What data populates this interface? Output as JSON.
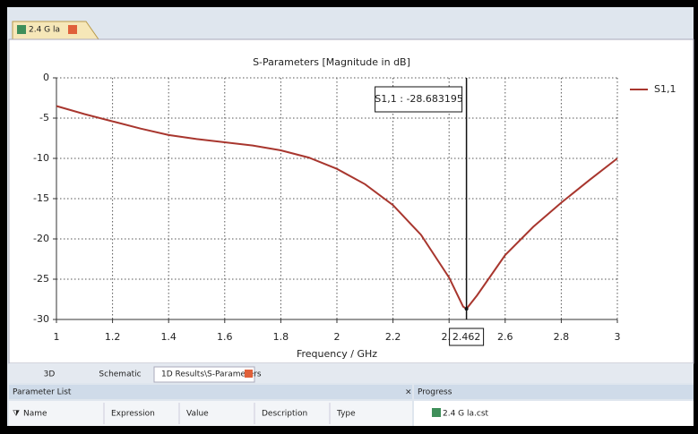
{
  "window": {
    "tab": "2.4 G la"
  },
  "chart_data": {
    "type": "line",
    "title": "S-Parameters [Magnitude in dB]",
    "x_label": "Frequency / GHz",
    "x": [
      1.0,
      1.1,
      1.2,
      1.3,
      1.4,
      1.5,
      1.6,
      1.7,
      1.8,
      1.9,
      2.0,
      2.1,
      2.2,
      2.3,
      2.4,
      2.45,
      2.462,
      2.5,
      2.6,
      2.7,
      2.8,
      2.9,
      3.0
    ],
    "series": [
      {
        "name": "S1,1",
        "color": "#a8362e",
        "values": [
          -3.5,
          -4.5,
          -5.4,
          -6.3,
          -7.1,
          -7.6,
          -8.0,
          -8.4,
          -9.0,
          -9.9,
          -11.3,
          -13.2,
          -15.8,
          -19.5,
          -24.8,
          -28.4,
          -28.683195,
          -27.0,
          -22.0,
          -18.5,
          -15.5,
          -12.7,
          -10.0
        ]
      }
    ],
    "xlim": [
      1,
      3
    ],
    "xticks": [
      1,
      1.2,
      1.4,
      1.6,
      1.8,
      2,
      2.2,
      2.4,
      2.6,
      2.8,
      3
    ],
    "ylim": [
      -30,
      0
    ],
    "yticks": [
      0,
      -5,
      -10,
      -15,
      -20,
      -25,
      -30
    ],
    "grid": true,
    "legend": "right",
    "marker": {
      "x": 2.462,
      "value": -28.683195,
      "label": "S1,1 : -28.683195"
    }
  },
  "bottom_tabs": [
    "3D",
    "Schematic",
    "1D Results\\S-Parameters"
  ],
  "parameter_list": {
    "title": "Parameter List",
    "columns": [
      "Name",
      "Expression",
      "Value",
      "Description",
      "Type"
    ]
  },
  "progress": {
    "title": "Progress",
    "item": "2.4 G la.cst"
  }
}
